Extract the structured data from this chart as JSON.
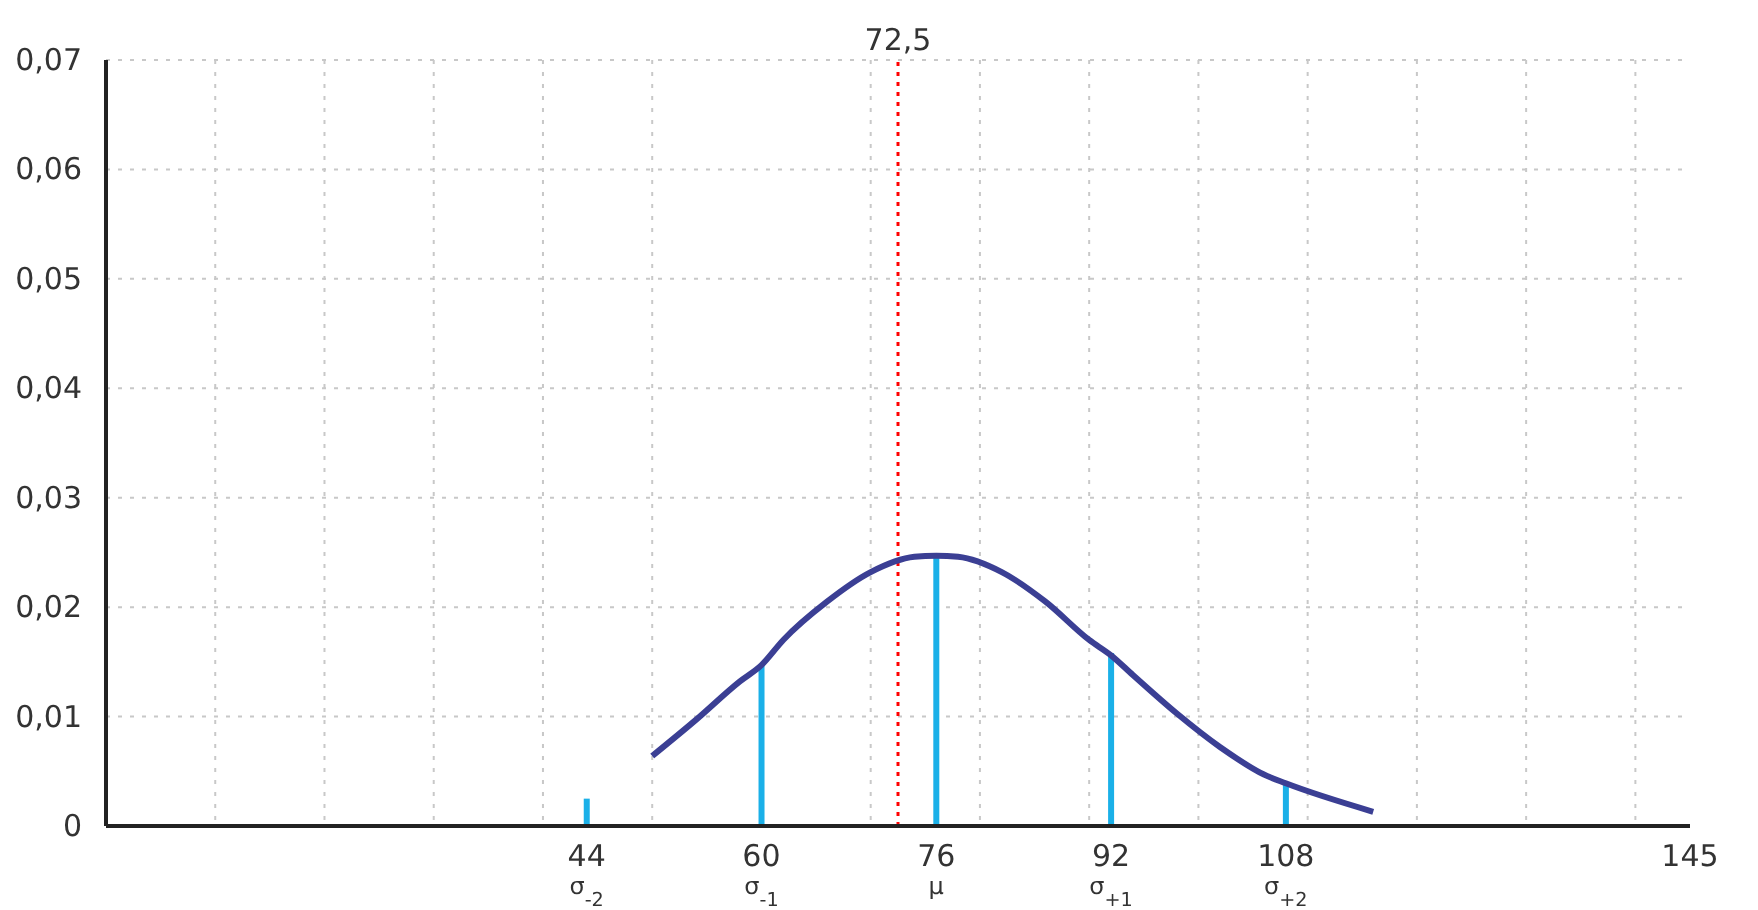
{
  "chart_data": {
    "type": "line",
    "xlim": [
      0,
      145
    ],
    "xticks": [
      {
        "value": 10,
        "label": null
      },
      {
        "value": 20,
        "label": null
      },
      {
        "value": 30,
        "label": null
      },
      {
        "value": 40,
        "label": null
      },
      {
        "value": 50,
        "label": null
      },
      {
        "value": 70,
        "label": null
      },
      {
        "value": 80,
        "label": null
      },
      {
        "value": 90,
        "label": null
      },
      {
        "value": 100,
        "label": null
      },
      {
        "value": 110,
        "label": null
      },
      {
        "value": 120,
        "label": null
      },
      {
        "value": 130,
        "label": null
      },
      {
        "value": 140,
        "label": null
      },
      {
        "value": 44,
        "label": "44\nσ$_{-2}$"
      },
      {
        "value": 60,
        "label": "60\nσ$_{-1}$"
      },
      {
        "value": 76,
        "label": "76\nμ"
      },
      {
        "value": 92,
        "label": "92\nσ$_{+1}$"
      },
      {
        "value": 108,
        "label": "108\nσ$_{+2}$"
      },
      145
    ],
    "ylim": [
      0,
      0.07
    ],
    "yticks": [
      0,
      {
        "value": 0.01,
        "label": "0,01"
      },
      {
        "value": 0.02,
        "label": "0,02"
      },
      {
        "value": 0.03,
        "label": "0,03"
      },
      {
        "value": 0.04,
        "label": "0,04"
      },
      {
        "value": 0.05,
        "label": "0,05"
      },
      {
        "value": 0.06,
        "label": "0,06"
      },
      {
        "value": 0.07,
        "label": "0,07"
      }
    ],
    "grid": true,
    "series": [
      {
        "color": "#3b3f94",
        "x": [
          50,
          54,
          58,
          60,
          62,
          66,
          70,
          74,
          76,
          78,
          82,
          86,
          90,
          92,
          94,
          98,
          102,
          106,
          108,
          116
        ],
        "values": [
          0.0064,
          0.0097,
          0.0132,
          0.0147,
          0.017,
          0.0205,
          0.0232,
          0.0246,
          0.0247,
          0.0246,
          0.0232,
          0.0205,
          0.017,
          0.0156,
          0.0138,
          0.0103,
          0.0072,
          0.0047,
          0.0039,
          0.0013
        ]
      },
      {
        "type": "bar",
        "color": "#1ab0e8",
        "x": [
          44,
          60,
          76,
          92,
          108
        ],
        "values": [
          0.0025,
          0.0147,
          0.0247,
          0.0158,
          0.0038
        ]
      }
    ],
    "ref_lines": [
      {
        "axis": "x",
        "value": 72.5,
        "label": "72,5",
        "color": "#ff0000",
        "line_style": "dotted"
      }
    ]
  }
}
